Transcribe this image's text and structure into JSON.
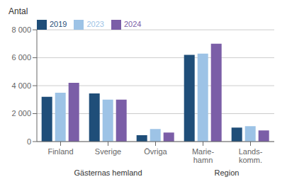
{
  "chart_data": {
    "type": "bar",
    "ylabel": "Antal",
    "categories": [
      "Finland",
      "Sverige",
      "Övriga",
      "Marie-\nhamn",
      "Lands-\nkomm."
    ],
    "series": [
      {
        "name": "2019",
        "color": "#1F4E79",
        "values": [
          3200,
          3450,
          450,
          6200,
          1000
        ]
      },
      {
        "name": "2023",
        "color": "#9DC3E6",
        "values": [
          3500,
          3000,
          900,
          6300,
          1100
        ]
      },
      {
        "name": "2024",
        "color": "#7B5EA7",
        "values": [
          4200,
          3000,
          650,
          7000,
          800
        ]
      }
    ],
    "ylim": [
      0,
      8000
    ],
    "yticks": [
      0,
      {
        "value": 2000,
        "label": "2 000"
      },
      {
        "value": 4000,
        "label": "4 000"
      },
      {
        "value": 6000,
        "label": "6 000"
      },
      {
        "value": 8000,
        "label": "8 000"
      }
    ],
    "annotations": [
      {
        "text": "Gästernas hemland",
        "categories": [
          "Finland",
          "Sverige",
          "Övriga"
        ]
      },
      {
        "text": "Region",
        "categories": [
          "Marie-\nhamn",
          "Lands-\nkomm."
        ]
      }
    ],
    "grid": true,
    "legend": "upper left"
  }
}
